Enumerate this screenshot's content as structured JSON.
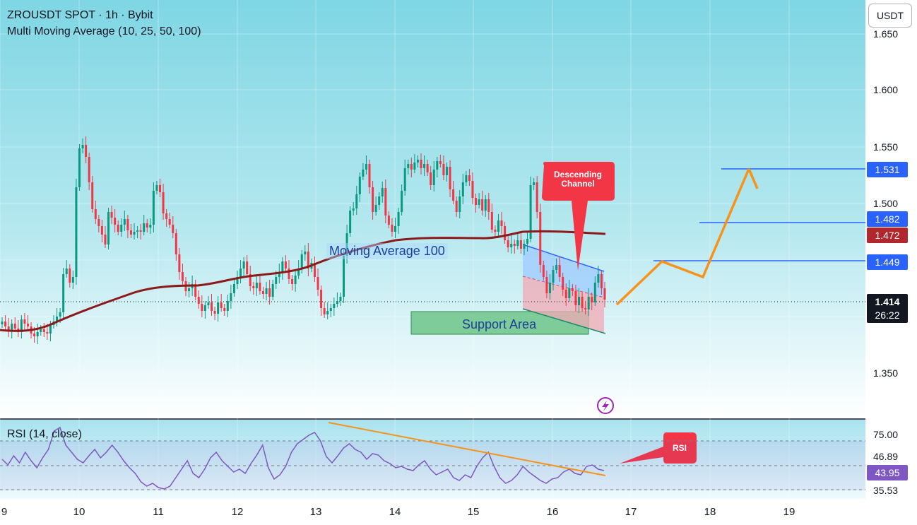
{
  "header": {
    "symbol_title": "ZROUSDT SPOT · 1h · Bybit",
    "indicator_title": "Multi Moving Average (10, 25, 50, 100)"
  },
  "currency_button": "USDT",
  "price_axis": {
    "ticks": [
      "1.650",
      "1.600",
      "1.550",
      "1.500",
      "1.350"
    ]
  },
  "price_tags": {
    "target_high": "1.531",
    "target_mid": "1.482",
    "ma_value": "1.472",
    "target_low": "1.449",
    "last_price": "1.414",
    "countdown": "26:22"
  },
  "annotations": {
    "moving_average": "Moving Average 100",
    "support_area": "Support Area",
    "descending_channel": "Descending Channel",
    "rsi_callout": "RSI"
  },
  "rsi_panel": {
    "title": "RSI (14, close)",
    "levels": [
      "75.00",
      "46.89",
      "43.95",
      "35.53"
    ]
  },
  "time_axis": {
    "labels": [
      "9",
      "10",
      "11",
      "12",
      "13",
      "14",
      "15",
      "16",
      "17",
      "18",
      "19"
    ]
  },
  "colors": {
    "up": "#089981",
    "down": "#f23645",
    "ma100": "#8b1a1a",
    "projection": "#f7931a",
    "target_line": "#2962ff",
    "callout": "#f23645"
  }
}
